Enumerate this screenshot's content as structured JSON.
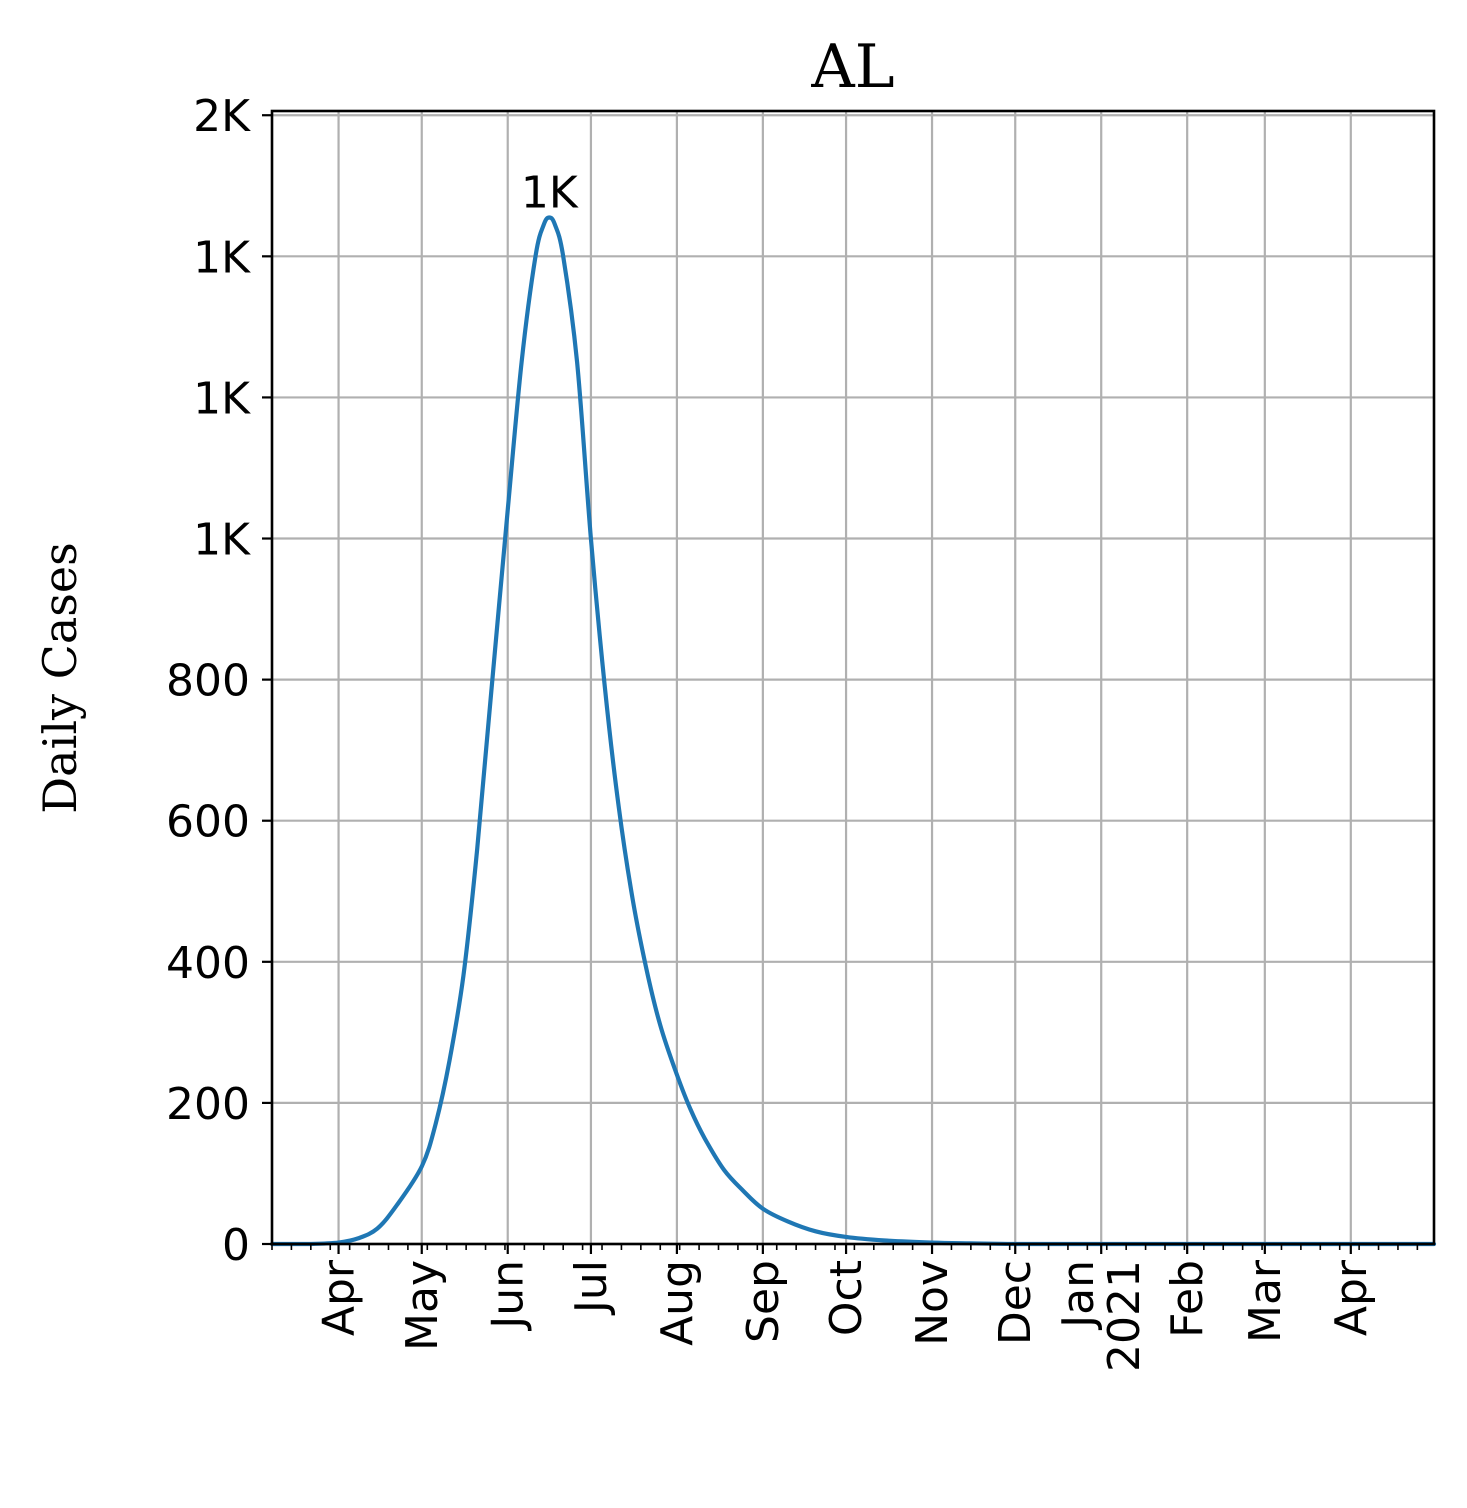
{
  "chart_data": {
    "type": "line",
    "title": "AL",
    "xlabel": "",
    "ylabel": "Daily Cases",
    "ylim": [
      0,
      1600
    ],
    "xlim": [
      "2020-03-08",
      "2021-05-01"
    ],
    "grid": true,
    "line_color": "#1f77b4",
    "y_ticks": [
      {
        "value": 0,
        "label": "0"
      },
      {
        "value": 200,
        "label": "200"
      },
      {
        "value": 400,
        "label": "400"
      },
      {
        "value": 600,
        "label": "600"
      },
      {
        "value": 800,
        "label": "800"
      },
      {
        "value": 1000,
        "label": "1K"
      },
      {
        "value": 1200,
        "label": "1K"
      },
      {
        "value": 1400,
        "label": "1K"
      },
      {
        "value": 1600,
        "label": "2K"
      }
    ],
    "x_ticks": [
      {
        "date": "2020-04-01",
        "label": "Apr"
      },
      {
        "date": "2020-05-01",
        "label": "May"
      },
      {
        "date": "2020-06-01",
        "label": "Jun"
      },
      {
        "date": "2020-07-01",
        "label": "Jul"
      },
      {
        "date": "2020-08-01",
        "label": "Aug"
      },
      {
        "date": "2020-09-01",
        "label": "Sep"
      },
      {
        "date": "2020-10-01",
        "label": "Oct"
      },
      {
        "date": "2020-11-01",
        "label": "Nov"
      },
      {
        "date": "2020-12-01",
        "label": "Dec"
      },
      {
        "date": "2021-01-01",
        "label": "Jan\n2021"
      },
      {
        "date": "2021-02-01",
        "label": "Feb"
      },
      {
        "date": "2021-03-01",
        "label": "Mar"
      },
      {
        "date": "2021-04-01",
        "label": "Apr"
      }
    ],
    "series": [
      {
        "x": [
          "2020-03-08",
          "2020-03-15",
          "2020-03-22",
          "2020-04-01",
          "2020-04-08",
          "2020-04-15",
          "2020-04-22",
          "2020-05-01",
          "2020-05-06",
          "2020-05-11",
          "2020-05-16",
          "2020-05-21",
          "2020-05-26",
          "2020-06-01",
          "2020-06-06",
          "2020-06-11",
          "2020-06-14",
          "2020-06-16",
          "2020-06-18",
          "2020-06-21",
          "2020-06-26",
          "2020-07-01",
          "2020-07-06",
          "2020-07-11",
          "2020-07-16",
          "2020-07-21",
          "2020-07-26",
          "2020-08-01",
          "2020-08-06",
          "2020-08-11",
          "2020-08-18",
          "2020-08-25",
          "2020-09-01",
          "2020-09-10",
          "2020-09-20",
          "2020-10-01",
          "2020-10-15",
          "2020-11-01",
          "2020-11-15",
          "2020-12-01",
          "2021-01-01",
          "2021-02-01",
          "2021-03-01",
          "2021-04-01",
          "2021-05-01"
        ],
        "y": [
          0,
          0,
          0,
          2,
          8,
          22,
          55,
          110,
          170,
          260,
          380,
          560,
          780,
          1040,
          1250,
          1400,
          1445,
          1455,
          1445,
          1400,
          1250,
          1000,
          790,
          620,
          490,
          390,
          310,
          240,
          190,
          150,
          105,
          75,
          50,
          32,
          18,
          10,
          5,
          2,
          1,
          0,
          0,
          0,
          0,
          0,
          0
        ]
      }
    ],
    "annotations": [
      {
        "x": "2020-06-16",
        "y": 1455,
        "text": "1K"
      }
    ]
  }
}
